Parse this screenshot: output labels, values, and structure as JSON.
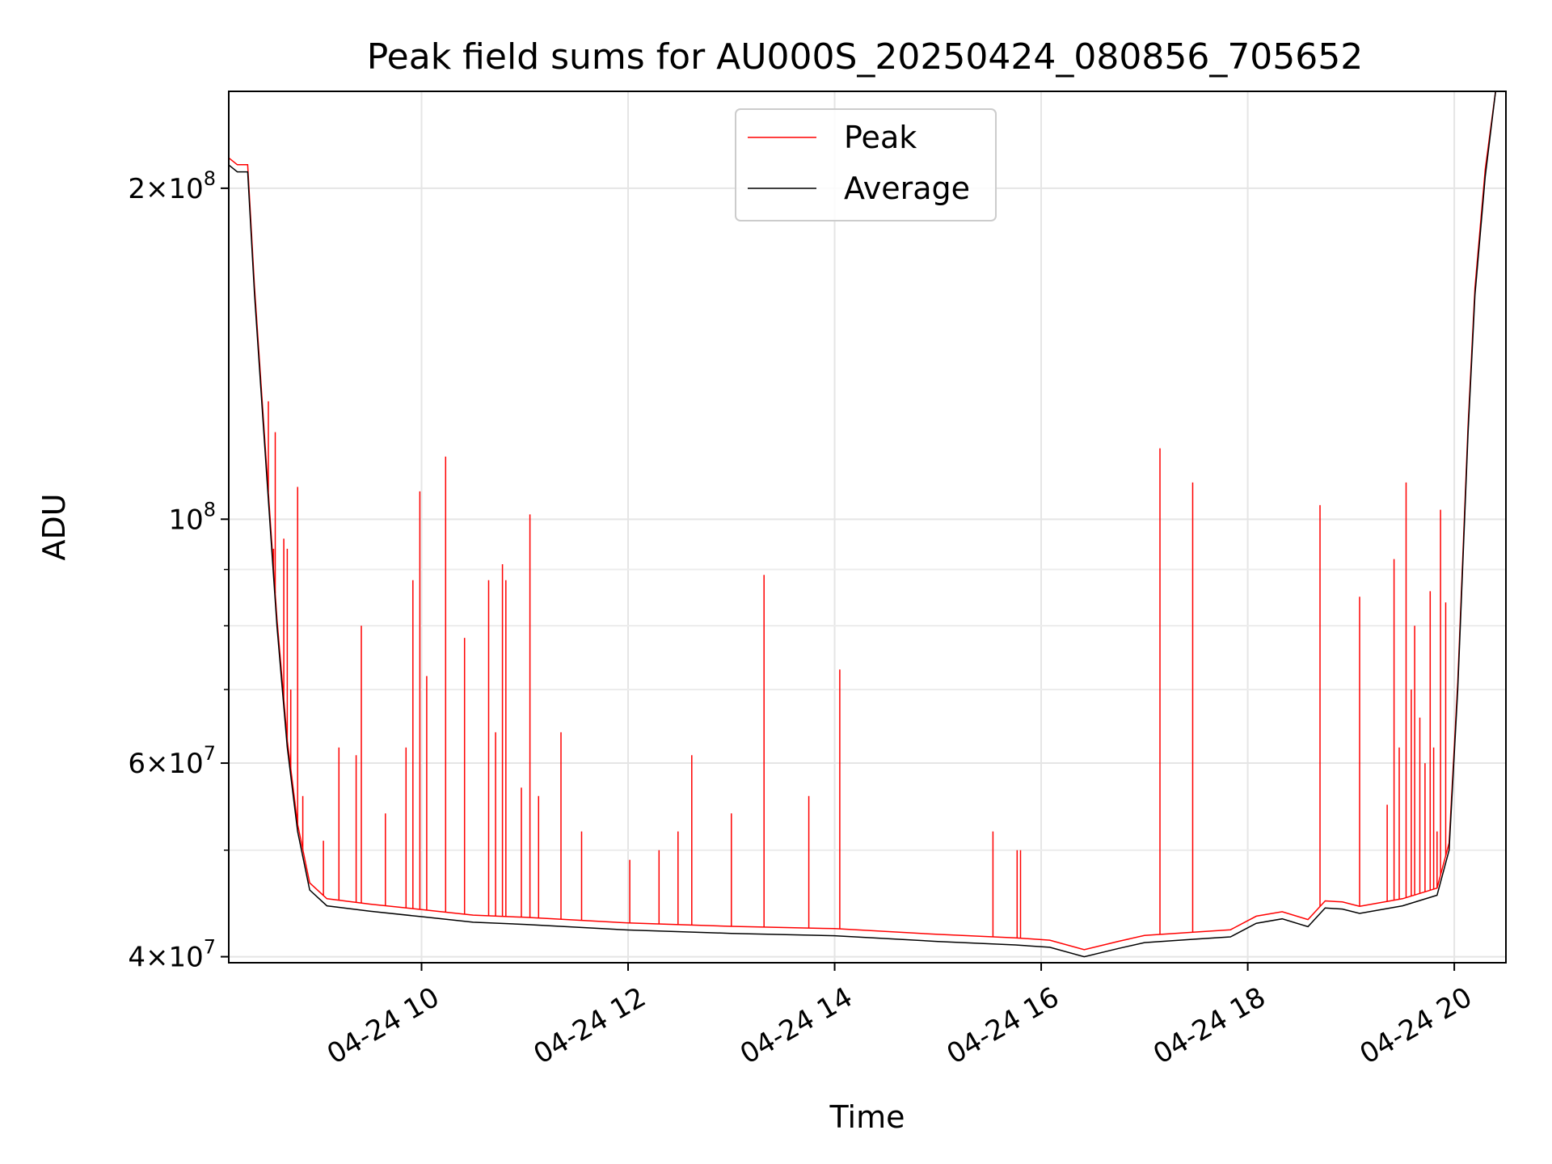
{
  "chart_data": {
    "type": "line",
    "title": "Peak field sums for AU000S_20250424_080856_705652",
    "xlabel": "Time",
    "ylabel": "ADU",
    "yscale": "log",
    "ylim": [
      39500000,
      245000000
    ],
    "xlim": [
      "2025-04-24 08:08",
      "2025-04-24 20:30"
    ],
    "grid": true,
    "legend_position": "top-center",
    "x_ticks": [
      "04-24 10",
      "04-24 12",
      "04-24 14",
      "04-24 16",
      "04-24 18",
      "04-24 20"
    ],
    "y_ticks": [
      {
        "value": 40000000,
        "base": "4×10",
        "exp": "7"
      },
      {
        "value": 60000000,
        "base": "6×10",
        "exp": "7"
      },
      {
        "value": 100000000,
        "base": "10",
        "exp": "8"
      },
      {
        "value": 200000000,
        "base": "2×10",
        "exp": "8"
      }
    ],
    "y_minor_ticks": [
      50000000,
      70000000,
      80000000,
      90000000
    ],
    "series": [
      {
        "name": "Average",
        "color": "#000000",
        "points": [
          [
            "2025-04-24 08:08",
            210000000
          ],
          [
            "2025-04-24 08:13",
            207000000
          ],
          [
            "2025-04-24 08:19",
            207000000
          ],
          [
            "2025-04-24 08:23",
            160000000
          ],
          [
            "2025-04-24 08:30",
            110000000
          ],
          [
            "2025-04-24 08:36",
            80000000
          ],
          [
            "2025-04-24 08:42",
            62000000
          ],
          [
            "2025-04-24 08:48",
            52000000
          ],
          [
            "2025-04-24 08:55",
            46000000
          ],
          [
            "2025-04-24 09:05",
            44500000
          ],
          [
            "2025-04-24 09:30",
            44000000
          ],
          [
            "2025-04-24 10:00",
            43500000
          ],
          [
            "2025-04-24 10:30",
            43000000
          ],
          [
            "2025-04-24 11:00",
            42800000
          ],
          [
            "2025-04-24 12:00",
            42300000
          ],
          [
            "2025-04-24 13:00",
            42000000
          ],
          [
            "2025-04-24 14:00",
            41800000
          ],
          [
            "2025-04-24 15:00",
            41300000
          ],
          [
            "2025-04-24 15:45",
            41000000
          ],
          [
            "2025-04-24 16:05",
            40800000
          ],
          [
            "2025-04-24 16:25",
            40000000
          ],
          [
            "2025-04-24 16:45",
            40700000
          ],
          [
            "2025-04-24 17:00",
            41200000
          ],
          [
            "2025-04-24 17:30",
            41500000
          ],
          [
            "2025-04-24 17:50",
            41700000
          ],
          [
            "2025-04-24 18:05",
            42900000
          ],
          [
            "2025-04-24 18:20",
            43300000
          ],
          [
            "2025-04-24 18:35",
            42600000
          ],
          [
            "2025-04-24 18:45",
            44300000
          ],
          [
            "2025-04-24 18:55",
            44200000
          ],
          [
            "2025-04-24 19:05",
            43800000
          ],
          [
            "2025-04-24 19:30",
            44500000
          ],
          [
            "2025-04-24 19:50",
            45500000
          ],
          [
            "2025-04-24 19:57",
            50000000
          ],
          [
            "2025-04-24 20:02",
            70000000
          ],
          [
            "2025-04-24 20:08",
            120000000
          ],
          [
            "2025-04-24 20:12",
            160000000
          ],
          [
            "2025-04-24 20:18",
            205000000
          ],
          [
            "2025-04-24 20:24",
            245000000
          ]
        ]
      },
      {
        "name": "Peak",
        "color": "#ff0000",
        "spikes": [
          [
            "2025-04-24 08:31",
            128000000
          ],
          [
            "2025-04-24 08:34",
            94000000
          ],
          [
            "2025-04-24 08:35",
            120000000
          ],
          [
            "2025-04-24 08:40",
            96000000
          ],
          [
            "2025-04-24 08:42",
            94000000
          ],
          [
            "2025-04-24 08:44",
            70000000
          ],
          [
            "2025-04-24 08:48",
            107000000
          ],
          [
            "2025-04-24 08:51",
            56000000
          ],
          [
            "2025-04-24 09:03",
            51000000
          ],
          [
            "2025-04-24 09:12",
            62000000
          ],
          [
            "2025-04-24 09:22",
            61000000
          ],
          [
            "2025-04-24 09:25",
            80000000
          ],
          [
            "2025-04-24 09:39",
            54000000
          ],
          [
            "2025-04-24 09:51",
            62000000
          ],
          [
            "2025-04-24 09:55",
            88000000
          ],
          [
            "2025-04-24 09:59",
            106000000
          ],
          [
            "2025-04-24 10:03",
            72000000
          ],
          [
            "2025-04-24 10:14",
            114000000
          ],
          [
            "2025-04-24 10:25",
            78000000
          ],
          [
            "2025-04-24 10:39",
            88000000
          ],
          [
            "2025-04-24 10:43",
            64000000
          ],
          [
            "2025-04-24 10:47",
            91000000
          ],
          [
            "2025-04-24 10:49",
            88000000
          ],
          [
            "2025-04-24 10:58",
            57000000
          ],
          [
            "2025-04-24 11:03",
            101000000
          ],
          [
            "2025-04-24 11:08",
            56000000
          ],
          [
            "2025-04-24 11:21",
            64000000
          ],
          [
            "2025-04-24 11:33",
            52000000
          ],
          [
            "2025-04-24 12:01",
            49000000
          ],
          [
            "2025-04-24 12:18",
            50000000
          ],
          [
            "2025-04-24 12:29",
            52000000
          ],
          [
            "2025-04-24 12:37",
            61000000
          ],
          [
            "2025-04-24 13:00",
            54000000
          ],
          [
            "2025-04-24 13:19",
            89000000
          ],
          [
            "2025-04-24 13:45",
            56000000
          ],
          [
            "2025-04-24 14:03",
            73000000
          ],
          [
            "2025-04-24 15:32",
            52000000
          ],
          [
            "2025-04-24 15:46",
            50000000
          ],
          [
            "2025-04-24 15:48",
            50000000
          ],
          [
            "2025-04-24 17:09",
            116000000
          ],
          [
            "2025-04-24 17:28",
            108000000
          ],
          [
            "2025-04-24 18:42",
            103000000
          ],
          [
            "2025-04-24 19:05",
            85000000
          ],
          [
            "2025-04-24 19:21",
            55000000
          ],
          [
            "2025-04-24 19:25",
            92000000
          ],
          [
            "2025-04-24 19:28",
            62000000
          ],
          [
            "2025-04-24 19:32",
            108000000
          ],
          [
            "2025-04-24 19:35",
            70000000
          ],
          [
            "2025-04-24 19:37",
            80000000
          ],
          [
            "2025-04-24 19:40",
            66000000
          ],
          [
            "2025-04-24 19:43",
            60000000
          ],
          [
            "2025-04-24 19:46",
            86000000
          ],
          [
            "2025-04-24 19:48",
            62000000
          ],
          [
            "2025-04-24 19:50",
            52000000
          ],
          [
            "2025-04-24 19:52",
            102000000
          ],
          [
            "2025-04-24 19:55",
            84000000
          ]
        ]
      }
    ]
  }
}
